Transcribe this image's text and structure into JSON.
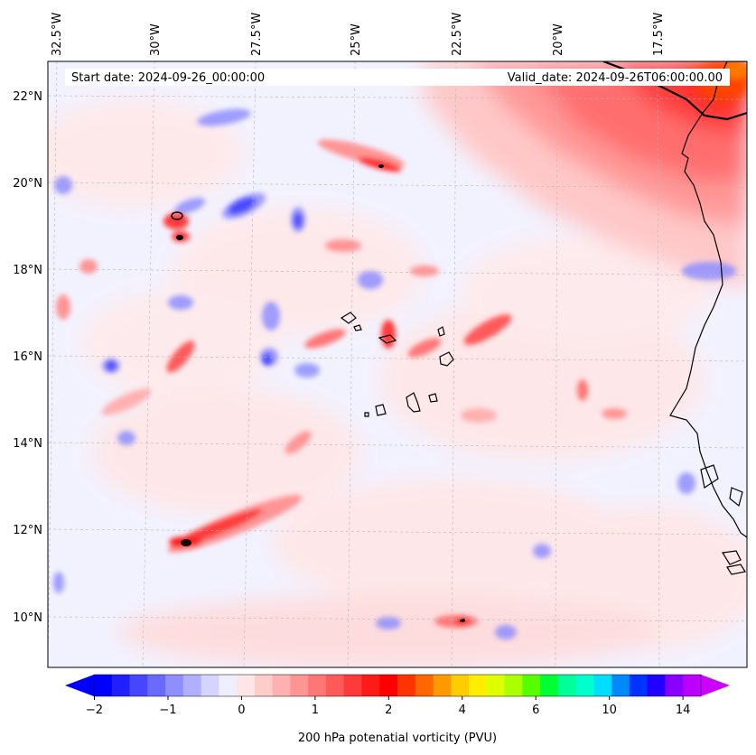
{
  "map": {
    "header": {
      "start_date": "Start date: 2024-09-26_00:00:00",
      "valid_date": "Valid_date: 2024-09-26T06:00:00.00"
    },
    "lon_labels": [
      "32.5°W",
      "30°W",
      "27.5°W",
      "25°W",
      "22.5°W",
      "20°W",
      "17.5°W"
    ],
    "lat_labels": [
      "22°N",
      "20°N",
      "18°N",
      "16°N",
      "14°N",
      "12°N",
      "10°N"
    ],
    "field": "200 hPa potential vorticity",
    "coastline_color": "#000000"
  },
  "colorbar": {
    "title": "200 hPa potenatial vorticity (PVU)",
    "tick_labels": [
      "−2",
      "−1",
      "0",
      "1",
      "2",
      "4",
      "6",
      "10",
      "14"
    ],
    "colors": [
      "#0000ff",
      "#2020ff",
      "#4646ff",
      "#6a6aff",
      "#8e8eff",
      "#b0b0ff",
      "#d4d4ff",
      "#eeeeff",
      "#ffe6e6",
      "#ffcccc",
      "#ffb0b0",
      "#ff9494",
      "#ff7676",
      "#ff5a5a",
      "#ff3a3a",
      "#ff1a1a",
      "#ff0000",
      "#ff3300",
      "#ff6600",
      "#ff9900",
      "#ffcc00",
      "#ffee00",
      "#ddff00",
      "#aaff00",
      "#55ff00",
      "#00ff33",
      "#00ff99",
      "#00ffcc",
      "#00ddff",
      "#0088ff",
      "#0033ff",
      "#2200ff",
      "#8800ff",
      "#bb00ff"
    ],
    "extend_min_color": "#0000ff",
    "extend_max_color": "#cc00ff"
  }
}
